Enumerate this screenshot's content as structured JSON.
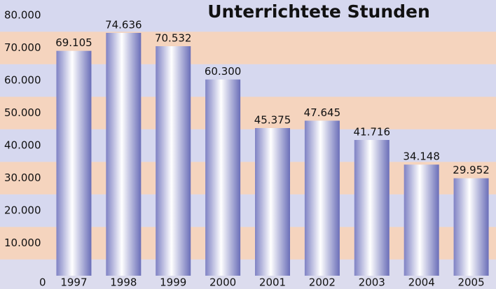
{
  "chart_data": {
    "type": "bar",
    "title": "Unterrichtete Stunden",
    "categories": [
      "1997",
      "1998",
      "1999",
      "2000",
      "2001",
      "2002",
      "2003",
      "2004",
      "2005"
    ],
    "values": [
      69105,
      74636,
      70532,
      60300,
      45375,
      47645,
      41716,
      34148,
      29952
    ],
    "value_labels": [
      "69.105",
      "74.636",
      "70.532",
      "60.300",
      "45.375",
      "47.645",
      "41.716",
      "34.148",
      "29.952"
    ],
    "color": "#8a8ed0",
    "ylim": [
      0,
      80000
    ],
    "yticks": [
      0,
      {
        "value": 10000,
        "label": "10.000"
      },
      {
        "value": 20000,
        "label": "20.000"
      },
      {
        "value": 30000,
        "label": "30.000"
      },
      {
        "value": 40000,
        "label": "40.000"
      },
      {
        "value": 50000,
        "label": "50.000"
      },
      {
        "value": 60000,
        "label": "60.000"
      },
      {
        "value": 70000,
        "label": "70.000"
      },
      {
        "value": 80000,
        "label": "80.000"
      }
    ],
    "grid": false
  }
}
